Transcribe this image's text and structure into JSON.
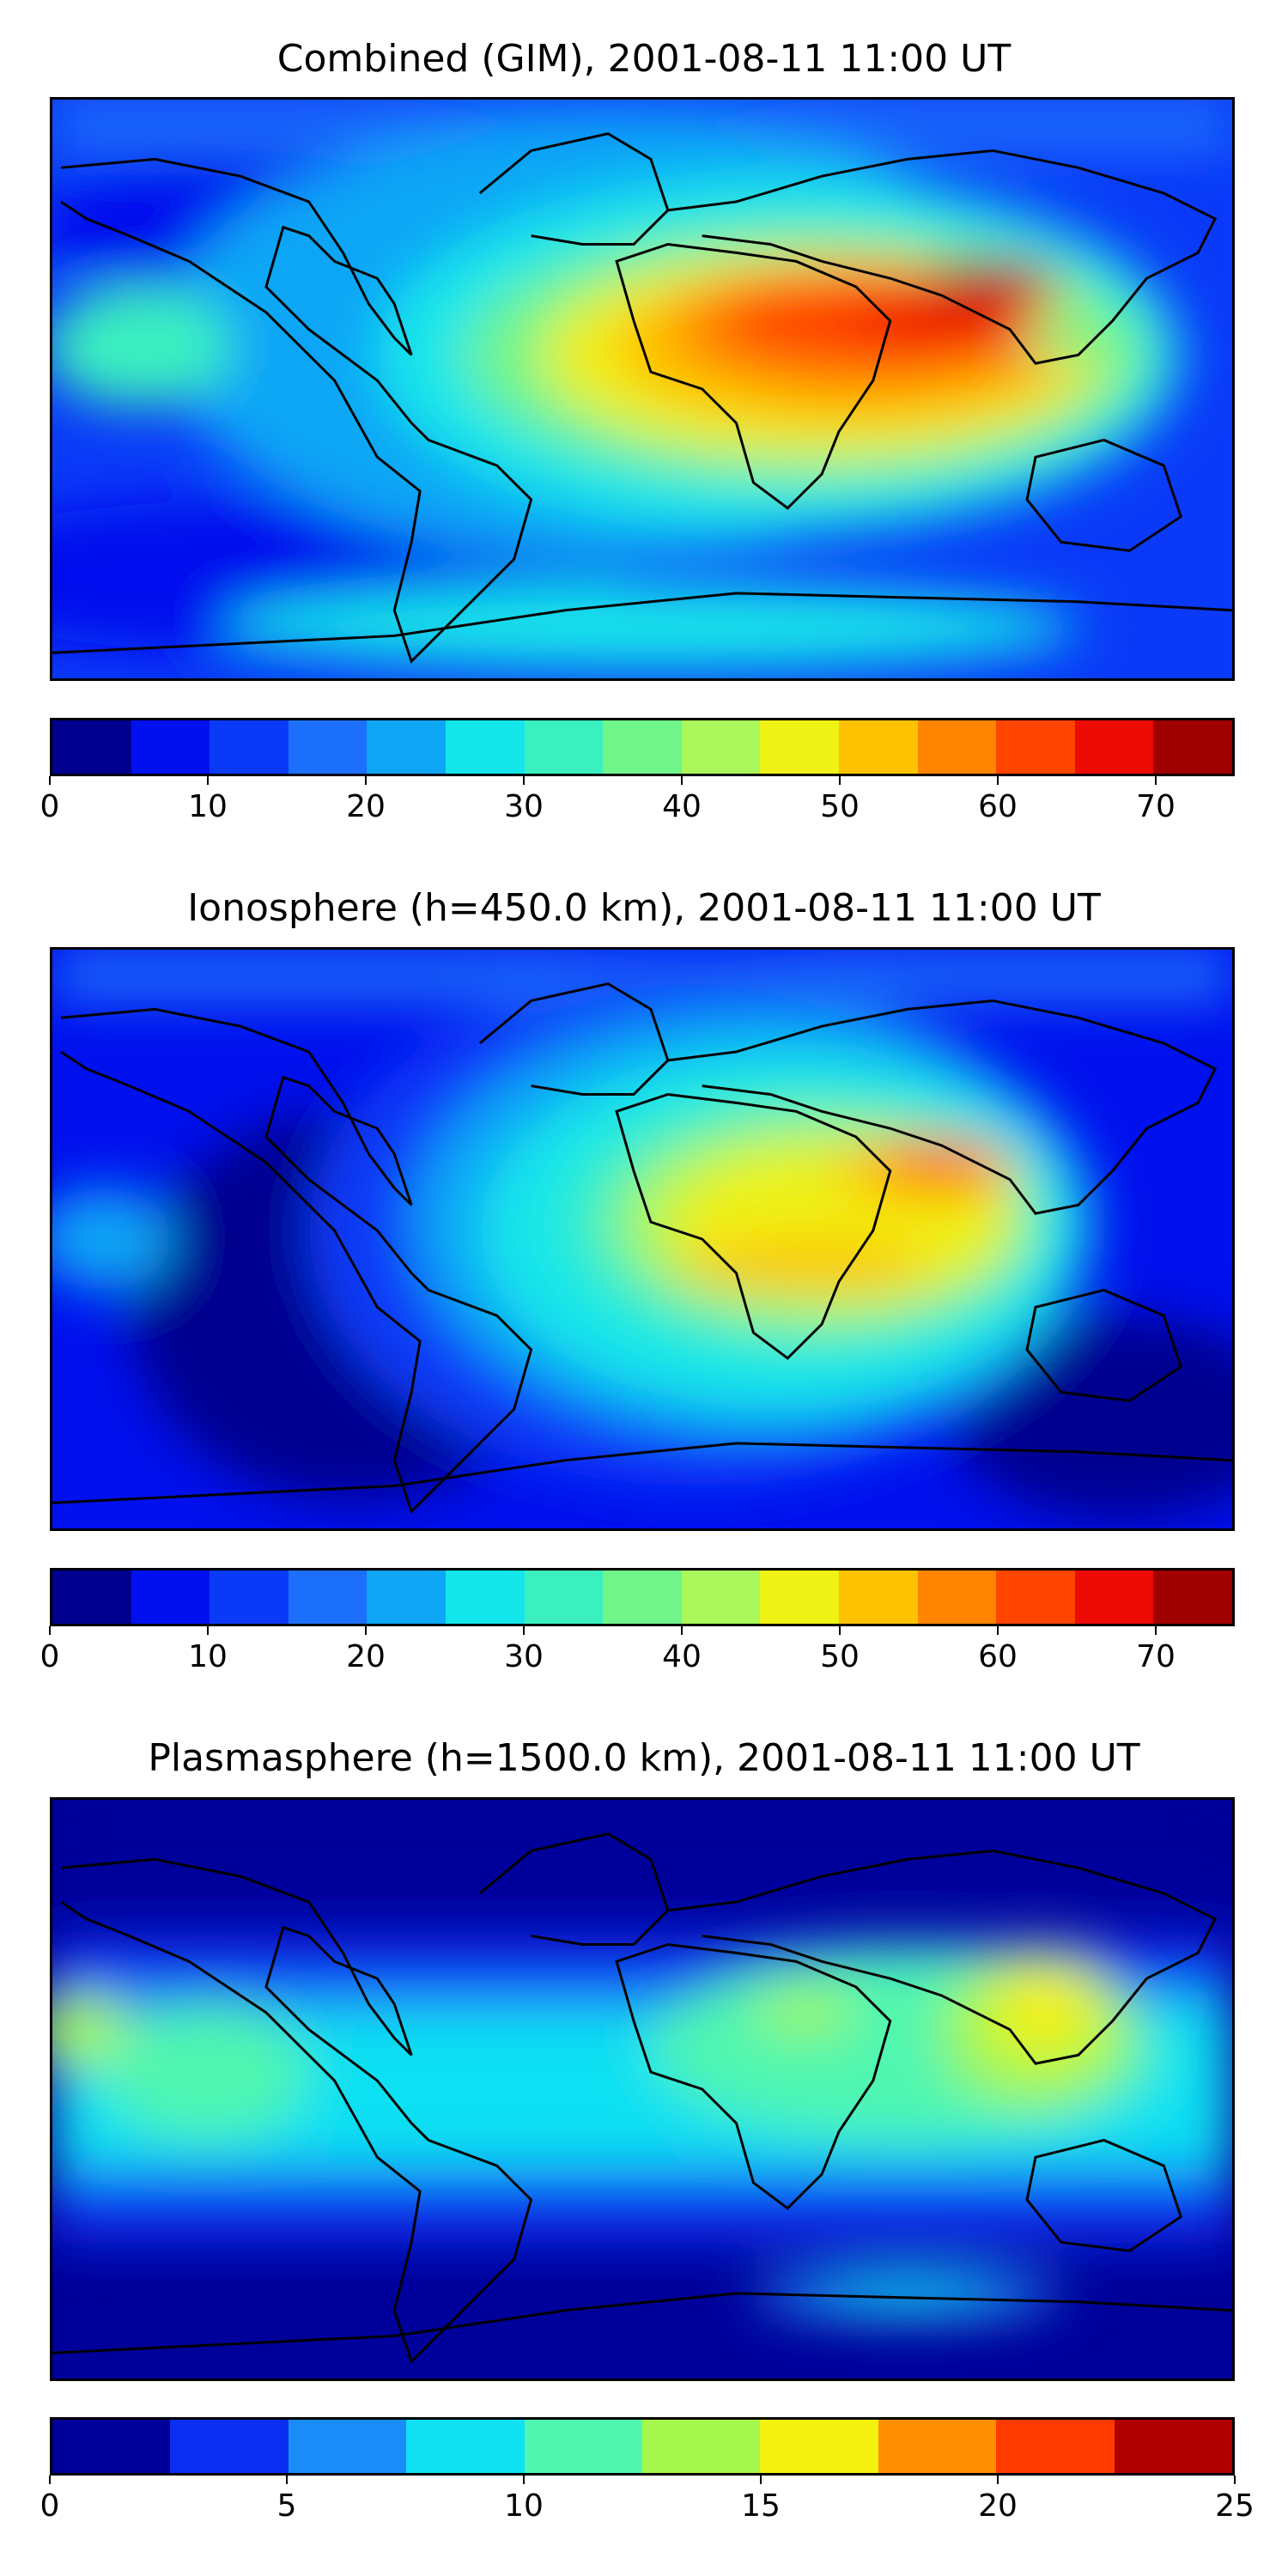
{
  "panels": [
    {
      "title": "Combined (GIM), 2001-08-11 11:00 UT",
      "colorbar": {
        "colors": [
          "#00008f",
          "#0010ee",
          "#0a3af8",
          "#1b6ffb",
          "#0fa6f6",
          "#12e6ea",
          "#3af0bf",
          "#6ff58a",
          "#a9f75a",
          "#eef215",
          "#ffc200",
          "#ff8500",
          "#ff4500",
          "#ee0b06",
          "#a00000"
        ],
        "tick_labels": [
          "0",
          "10",
          "20",
          "30",
          "40",
          "50",
          "60",
          "70"
        ],
        "tick_values": [
          0,
          10,
          20,
          30,
          40,
          50,
          60,
          70
        ],
        "vmin": 0,
        "vmax": 75
      }
    },
    {
      "title": "Ionosphere  (h=450.0 km), 2001-08-11 11:00 UT",
      "colorbar": {
        "colors": [
          "#00008f",
          "#0010ee",
          "#0a3af8",
          "#1b6ffb",
          "#0fa6f6",
          "#12e6ea",
          "#3af0bf",
          "#6ff58a",
          "#a9f75a",
          "#eef215",
          "#ffc200",
          "#ff8500",
          "#ff4500",
          "#ee0b06",
          "#a00000"
        ],
        "tick_labels": [
          "0",
          "10",
          "20",
          "30",
          "40",
          "50",
          "60",
          "70"
        ],
        "tick_values": [
          0,
          10,
          20,
          30,
          40,
          50,
          60,
          70
        ],
        "vmin": 0,
        "vmax": 75
      }
    },
    {
      "title": "Plasmasphere (h=1500.0 km), 2001-08-11 11:00 UT",
      "colorbar": {
        "colors": [
          "#00009a",
          "#0a2ff0",
          "#1a8cf8",
          "#0fe0f2",
          "#50f6b0",
          "#a6f74c",
          "#f4f10f",
          "#ff8f00",
          "#ff3b00",
          "#b00000"
        ],
        "tick_labels": [
          "0",
          "5",
          "10",
          "15",
          "20",
          "25"
        ],
        "tick_values": [
          0,
          5,
          10,
          15,
          20,
          25
        ],
        "vmin": 0,
        "vmax": 25
      }
    }
  ]
}
